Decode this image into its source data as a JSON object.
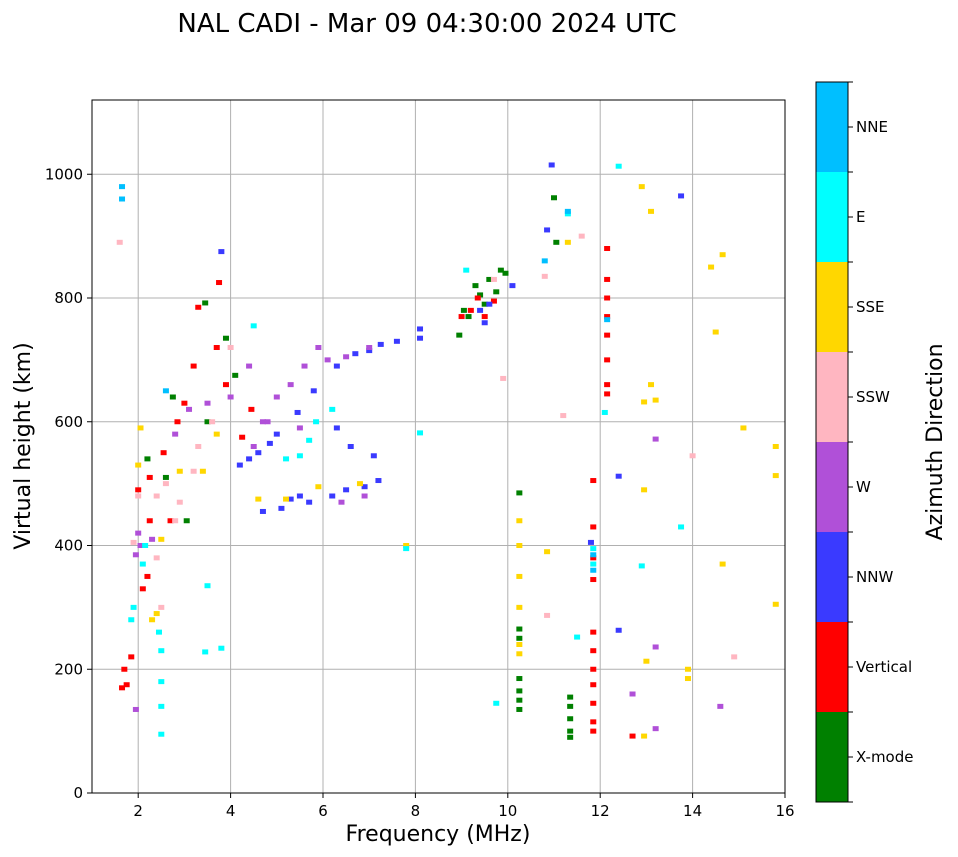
{
  "chart_data": {
    "type": "scatter",
    "title": "NAL CADI - Mar 09 04:30:00 2024 UTC",
    "xlabel": "Frequency (MHz)",
    "ylabel": "Virtual height (km)",
    "xlim": [
      1,
      16
    ],
    "ylim": [
      0,
      1120
    ],
    "xticks": [
      2,
      4,
      6,
      8,
      10,
      12,
      14,
      16
    ],
    "yticks": [
      0,
      200,
      400,
      600,
      800,
      1000
    ],
    "grid": true,
    "colorbar": {
      "label": "Azimuth Direction",
      "categories": [
        "X-mode",
        "Vertical",
        "NNW",
        "W",
        "SSW",
        "SSE",
        "E",
        "NNE"
      ],
      "colors": [
        "#008000",
        "#ff0000",
        "#3a3aff",
        "#b050d8",
        "#ffb6c1",
        "#ffd700",
        "#00ffff",
        "#00bfff"
      ]
    },
    "series": [
      {
        "name": "X-mode",
        "points": [
          [
            3.45,
            792
          ],
          [
            3.5,
            600
          ],
          [
            3.9,
            735
          ],
          [
            4.1,
            675
          ],
          [
            2.6,
            510
          ],
          [
            2.2,
            540
          ],
          [
            3.05,
            440
          ],
          [
            2.75,
            640
          ],
          [
            8.95,
            740
          ],
          [
            9.05,
            780
          ],
          [
            9.15,
            770
          ],
          [
            9.3,
            820
          ],
          [
            9.4,
            805
          ],
          [
            9.5,
            790
          ],
          [
            9.6,
            830
          ],
          [
            9.75,
            810
          ],
          [
            9.85,
            845
          ],
          [
            9.95,
            840
          ],
          [
            10.25,
            485
          ],
          [
            10.25,
            265
          ],
          [
            10.25,
            250
          ],
          [
            10.25,
            185
          ],
          [
            10.25,
            165
          ],
          [
            10.25,
            150
          ],
          [
            10.25,
            135
          ],
          [
            11.35,
            155
          ],
          [
            11.35,
            140
          ],
          [
            11.35,
            120
          ],
          [
            11.35,
            100
          ],
          [
            11.35,
            90
          ],
          [
            11.0,
            962
          ],
          [
            11.05,
            890
          ]
        ]
      },
      {
        "name": "Vertical",
        "points": [
          [
            1.65,
            170
          ],
          [
            1.75,
            175
          ],
          [
            1.7,
            200
          ],
          [
            1.85,
            220
          ],
          [
            2.1,
            330
          ],
          [
            2.2,
            350
          ],
          [
            2.25,
            440
          ],
          [
            2.0,
            490
          ],
          [
            2.25,
            510
          ],
          [
            2.55,
            550
          ],
          [
            2.7,
            440
          ],
          [
            2.85,
            600
          ],
          [
            3.0,
            630
          ],
          [
            3.2,
            690
          ],
          [
            3.3,
            785
          ],
          [
            3.75,
            825
          ],
          [
            3.7,
            720
          ],
          [
            3.9,
            660
          ],
          [
            4.25,
            575
          ],
          [
            4.45,
            620
          ],
          [
            9.0,
            770
          ],
          [
            9.2,
            780
          ],
          [
            9.35,
            800
          ],
          [
            9.5,
            770
          ],
          [
            9.7,
            795
          ],
          [
            11.85,
            505
          ],
          [
            11.85,
            430
          ],
          [
            11.85,
            380
          ],
          [
            11.85,
            345
          ],
          [
            11.85,
            260
          ],
          [
            11.85,
            230
          ],
          [
            11.85,
            200
          ],
          [
            11.85,
            175
          ],
          [
            11.85,
            145
          ],
          [
            11.85,
            115
          ],
          [
            11.85,
            100
          ],
          [
            12.15,
            880
          ],
          [
            12.15,
            830
          ],
          [
            12.15,
            800
          ],
          [
            12.15,
            770
          ],
          [
            12.15,
            740
          ],
          [
            12.15,
            700
          ],
          [
            12.15,
            660
          ],
          [
            12.15,
            645
          ],
          [
            12.7,
            92
          ]
        ]
      },
      {
        "name": "NNW",
        "points": [
          [
            4.2,
            530
          ],
          [
            4.4,
            540
          ],
          [
            4.6,
            550
          ],
          [
            4.85,
            565
          ],
          [
            5.0,
            580
          ],
          [
            5.1,
            460
          ],
          [
            5.3,
            475
          ],
          [
            5.5,
            480
          ],
          [
            5.7,
            470
          ],
          [
            4.7,
            455
          ],
          [
            6.2,
            480
          ],
          [
            6.5,
            490
          ],
          [
            6.9,
            495
          ],
          [
            7.2,
            505
          ],
          [
            7.1,
            545
          ],
          [
            6.6,
            560
          ],
          [
            6.3,
            590
          ],
          [
            6.3,
            690
          ],
          [
            6.7,
            710
          ],
          [
            7.0,
            715
          ],
          [
            7.25,
            725
          ],
          [
            7.6,
            730
          ],
          [
            8.1,
            750
          ],
          [
            8.1,
            735
          ],
          [
            9.4,
            780
          ],
          [
            9.5,
            760
          ],
          [
            9.6,
            790
          ],
          [
            10.1,
            820
          ],
          [
            10.95,
            1015
          ],
          [
            10.85,
            910
          ],
          [
            11.8,
            405
          ],
          [
            12.4,
            512
          ],
          [
            12.4,
            263
          ],
          [
            13.75,
            965
          ],
          [
            3.8,
            875
          ],
          [
            5.45,
            615
          ],
          [
            5.8,
            650
          ]
        ]
      },
      {
        "name": "W",
        "points": [
          [
            1.95,
            385
          ],
          [
            2.0,
            420
          ],
          [
            2.3,
            410
          ],
          [
            2.8,
            580
          ],
          [
            3.1,
            620
          ],
          [
            3.5,
            630
          ],
          [
            4.0,
            640
          ],
          [
            4.5,
            560
          ],
          [
            4.8,
            600
          ],
          [
            5.0,
            640
          ],
          [
            5.3,
            660
          ],
          [
            5.6,
            690
          ],
          [
            6.1,
            700
          ],
          [
            6.5,
            705
          ],
          [
            7.0,
            720
          ],
          [
            5.9,
            720
          ],
          [
            6.4,
            470
          ],
          [
            6.9,
            480
          ],
          [
            4.4,
            690
          ],
          [
            4.7,
            600
          ],
          [
            5.5,
            590
          ],
          [
            2.05,
            400
          ],
          [
            1.95,
            135
          ],
          [
            12.7,
            160
          ],
          [
            13.2,
            572
          ],
          [
            13.2,
            236
          ],
          [
            13.2,
            104
          ],
          [
            14.6,
            140
          ]
        ]
      },
      {
        "name": "SSW",
        "points": [
          [
            2.0,
            480
          ],
          [
            2.4,
            480
          ],
          [
            2.6,
            500
          ],
          [
            2.9,
            470
          ],
          [
            3.2,
            520
          ],
          [
            2.5,
            300
          ],
          [
            2.4,
            380
          ],
          [
            2.8,
            440
          ],
          [
            3.3,
            560
          ],
          [
            3.6,
            600
          ],
          [
            1.9,
            405
          ],
          [
            1.6,
            890
          ],
          [
            4.0,
            720
          ],
          [
            9.7,
            830
          ],
          [
            9.9,
            670
          ],
          [
            10.8,
            835
          ],
          [
            10.85,
            287
          ],
          [
            11.2,
            610
          ],
          [
            11.6,
            900
          ],
          [
            14.0,
            545
          ],
          [
            14.9,
            220
          ]
        ]
      },
      {
        "name": "SSE",
        "points": [
          [
            2.3,
            280
          ],
          [
            2.4,
            290
          ],
          [
            2.0,
            530
          ],
          [
            2.05,
            590
          ],
          [
            2.5,
            410
          ],
          [
            2.9,
            520
          ],
          [
            3.4,
            520
          ],
          [
            3.7,
            580
          ],
          [
            4.6,
            475
          ],
          [
            5.2,
            475
          ],
          [
            5.9,
            495
          ],
          [
            6.8,
            500
          ],
          [
            7.8,
            400
          ],
          [
            10.25,
            440
          ],
          [
            10.25,
            400
          ],
          [
            10.25,
            350
          ],
          [
            10.25,
            300
          ],
          [
            10.25,
            240
          ],
          [
            10.25,
            225
          ],
          [
            10.85,
            390
          ],
          [
            11.3,
            890
          ],
          [
            12.9,
            980
          ],
          [
            13.1,
            940
          ],
          [
            13.1,
            660
          ],
          [
            12.95,
            632
          ],
          [
            13.2,
            635
          ],
          [
            12.95,
            490
          ],
          [
            13.0,
            213
          ],
          [
            12.95,
            92
          ],
          [
            13.9,
            200
          ],
          [
            13.9,
            185
          ],
          [
            14.4,
            850
          ],
          [
            14.5,
            745
          ],
          [
            14.65,
            870
          ],
          [
            14.65,
            370
          ],
          [
            15.1,
            590
          ],
          [
            15.8,
            560
          ],
          [
            15.8,
            513
          ],
          [
            15.8,
            305
          ]
        ]
      },
      {
        "name": "E",
        "points": [
          [
            1.85,
            280
          ],
          [
            1.9,
            300
          ],
          [
            2.1,
            370
          ],
          [
            2.15,
            400
          ],
          [
            2.5,
            230
          ],
          [
            2.5,
            180
          ],
          [
            2.5,
            140
          ],
          [
            2.5,
            95
          ],
          [
            3.5,
            335
          ],
          [
            3.45,
            228
          ],
          [
            3.8,
            234
          ],
          [
            4.5,
            755
          ],
          [
            5.7,
            570
          ],
          [
            5.85,
            600
          ],
          [
            6.2,
            620
          ],
          [
            7.8,
            395
          ],
          [
            8.1,
            582
          ],
          [
            9.1,
            845
          ],
          [
            11.3,
            936
          ],
          [
            11.85,
            395
          ],
          [
            11.85,
            370
          ],
          [
            12.4,
            1013
          ],
          [
            12.1,
            615
          ],
          [
            12.9,
            367
          ],
          [
            13.75,
            430
          ],
          [
            9.75,
            145
          ],
          [
            11.5,
            252
          ],
          [
            2.45,
            260
          ],
          [
            5.2,
            540
          ],
          [
            5.5,
            545
          ]
        ]
      },
      {
        "name": "NNE",
        "points": [
          [
            1.65,
            980
          ],
          [
            1.65,
            960
          ],
          [
            11.85,
            385
          ],
          [
            11.85,
            360
          ],
          [
            12.15,
            765
          ],
          [
            10.8,
            860
          ],
          [
            11.3,
            940
          ],
          [
            2.6,
            650
          ]
        ]
      }
    ]
  }
}
